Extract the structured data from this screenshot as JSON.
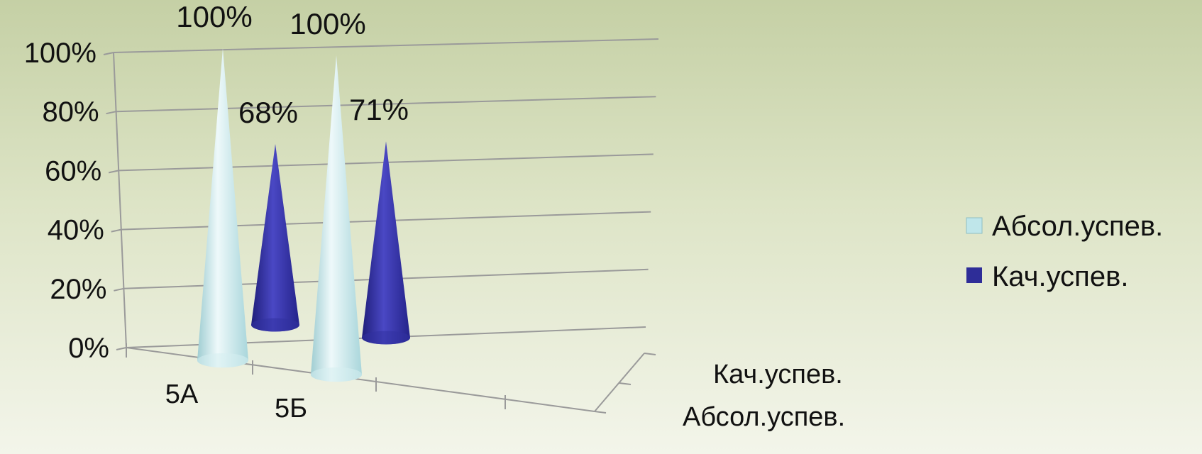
{
  "chart_data": {
    "type": "bar",
    "style": "3d-cone",
    "categories": [
      "5А",
      "5Б"
    ],
    "series": [
      {
        "name": "Абсол.успев.",
        "values": [
          100,
          100
        ],
        "color": "#bfe6ea"
      },
      {
        "name": "Кач.успев.",
        "values": [
          68,
          71
        ],
        "color": "#2e2d98"
      }
    ],
    "data_labels": [
      "100%",
      "100%",
      "68%",
      "71%"
    ],
    "yticks": [
      "0%",
      "20%",
      "40%",
      "60%",
      "80%",
      "100%"
    ],
    "ylim": [
      0,
      100
    ],
    "depth_labels": [
      "Кач.успев.",
      "Абсол.успев."
    ],
    "grid": true,
    "legend": "right"
  }
}
